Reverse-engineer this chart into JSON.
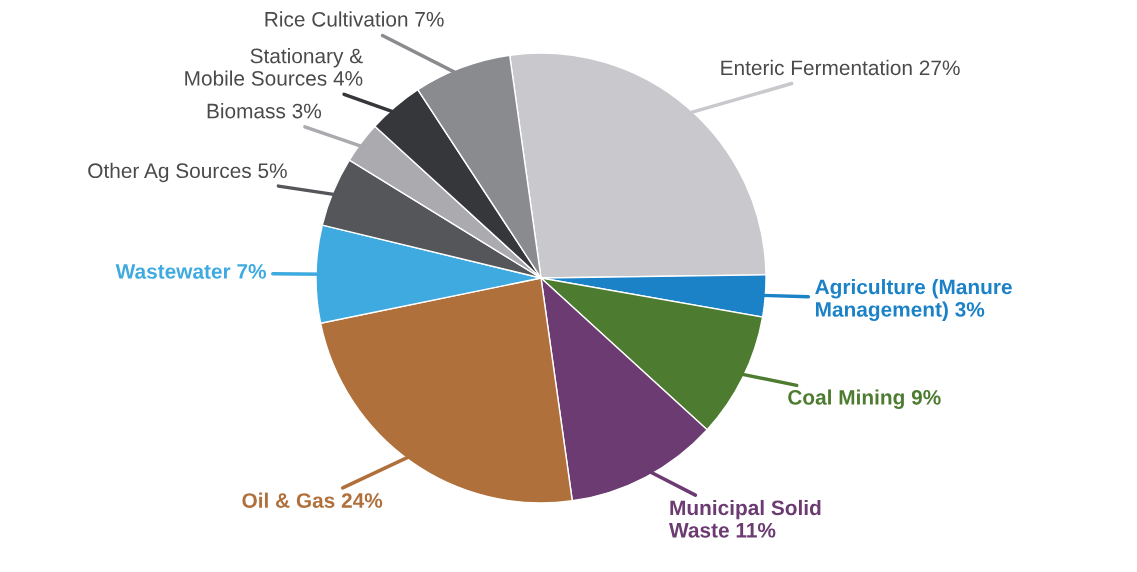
{
  "chart_data": {
    "type": "pie",
    "categories": [
      "Enteric Fermentation 27%",
      "Agriculture (Manure\nManagement) 3%",
      "Coal Mining 9%",
      "Municipal Solid\nWaste 11%",
      "Oil & Gas 24%",
      "Wastewater 7%",
      "Other Ag Sources 5%",
      "Biomass 3%",
      "Stationary &\nMobile Sources 4%",
      "Rice Cultivation 7%"
    ],
    "values": [
      27,
      3,
      9,
      11,
      24,
      7,
      5,
      3,
      4,
      7
    ],
    "colors": [
      "#c9c9cd",
      "#1b82c8",
      "#4d7b30",
      "#6b3b72",
      "#b0703c",
      "#3eaadf",
      "#55565a",
      "#ababaf",
      "#36373a",
      "#8a8b8f"
    ],
    "legend": false
  }
}
